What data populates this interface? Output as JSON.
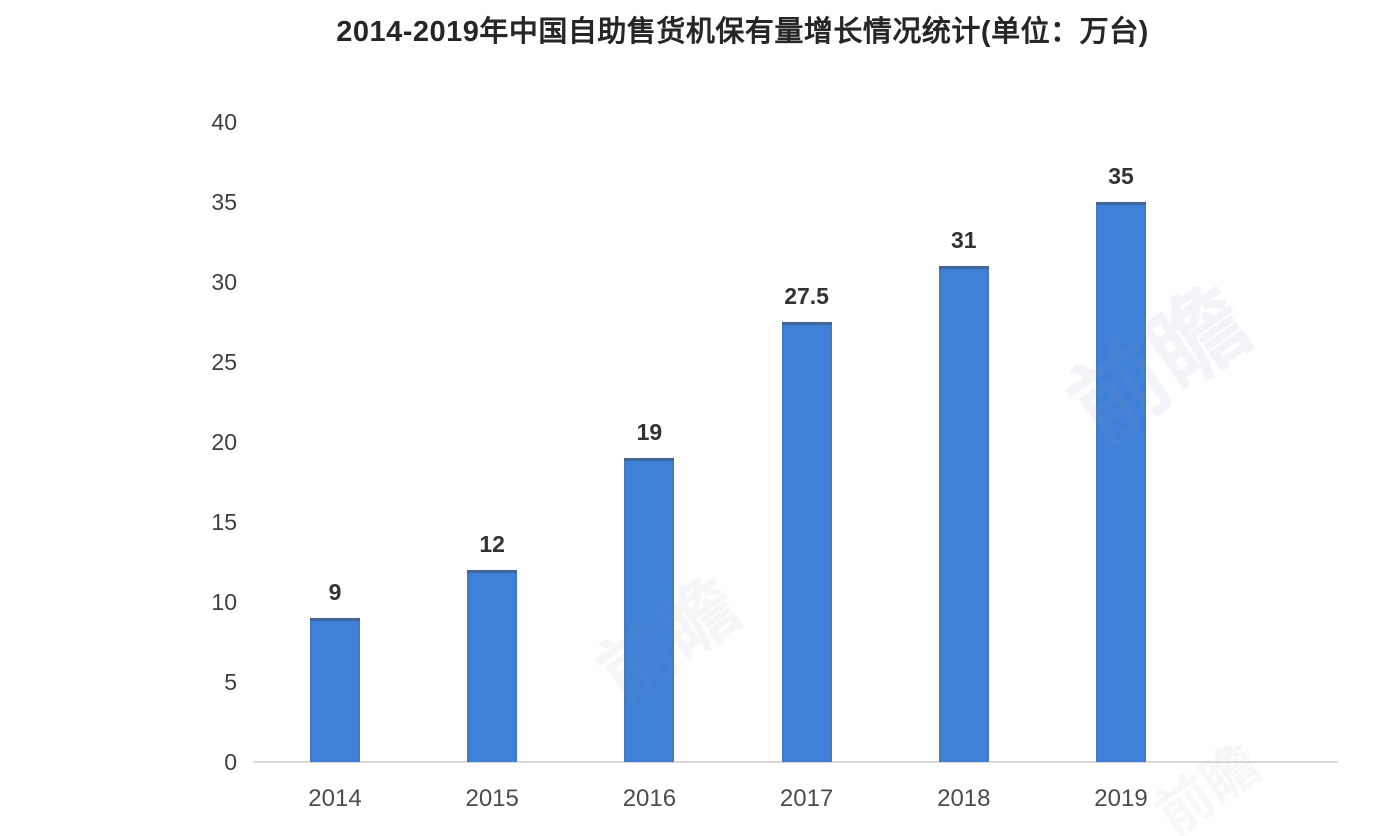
{
  "chart": {
    "title": "2014-2019年中国自助售货机保有量增长情况统计(单位：万台)",
    "watermark_text": "前瞻"
  },
  "chart_data": {
    "type": "bar",
    "title": "2014-2019年中国自助售货机保有量增长情况统计(单位：万台)",
    "categories": [
      "2014",
      "2015",
      "2016",
      "2017",
      "2018",
      "2019"
    ],
    "values": [
      9,
      12,
      19,
      27.5,
      31,
      35
    ],
    "value_labels": [
      "9",
      "12",
      "19",
      "27.5",
      "31",
      "35"
    ],
    "xlabel": "",
    "ylabel": "",
    "ylim": [
      0,
      40
    ],
    "y_ticks": [
      0,
      5,
      10,
      15,
      20,
      25,
      30,
      35,
      40
    ],
    "grid": false,
    "legend_position": "none",
    "colors": {
      "bar_fill": "#3f80d8",
      "bar_edge": "#5d6b78",
      "axis_line": "#d9d9d9",
      "tick_text": "#3f3f3f",
      "value_text": "#333333",
      "title_text": "#262626"
    }
  }
}
